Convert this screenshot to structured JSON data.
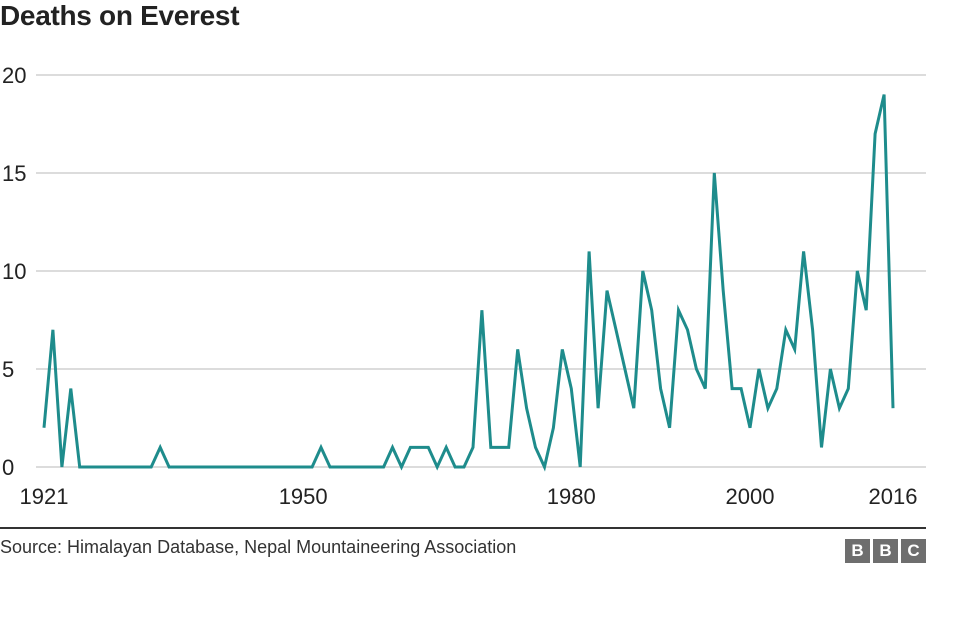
{
  "chart_data": {
    "type": "line",
    "title": "Deaths on Everest",
    "xlabel": "",
    "ylabel": "",
    "xlim": [
      1921,
      2016
    ],
    "ylim": [
      0,
      20
    ],
    "yticks": [
      0,
      5,
      10,
      15,
      20
    ],
    "xticks": [
      1921,
      1950,
      1980,
      2000,
      2016
    ],
    "grid": true,
    "series": [
      {
        "color": "#1e8c8c",
        "x": [
          1921,
          1922,
          1923,
          1924,
          1925,
          1926,
          1927,
          1928,
          1929,
          1930,
          1931,
          1932,
          1933,
          1934,
          1935,
          1936,
          1937,
          1938,
          1939,
          1940,
          1941,
          1942,
          1943,
          1944,
          1945,
          1946,
          1947,
          1948,
          1949,
          1950,
          1951,
          1952,
          1953,
          1954,
          1955,
          1956,
          1957,
          1958,
          1959,
          1960,
          1961,
          1962,
          1963,
          1964,
          1965,
          1966,
          1967,
          1968,
          1969,
          1970,
          1971,
          1972,
          1973,
          1974,
          1975,
          1976,
          1977,
          1978,
          1979,
          1980,
          1981,
          1982,
          1983,
          1984,
          1985,
          1986,
          1987,
          1988,
          1989,
          1990,
          1991,
          1992,
          1993,
          1994,
          1995,
          1996,
          1997,
          1998,
          1999,
          2000,
          2001,
          2002,
          2003,
          2004,
          2005,
          2006,
          2007,
          2008,
          2009,
          2010,
          2011,
          2012,
          2013,
          2014,
          2015,
          2016
        ],
        "y": [
          2,
          7,
          0,
          4,
          0,
          0,
          0,
          0,
          0,
          0,
          0,
          0,
          0,
          1,
          0,
          0,
          0,
          0,
          0,
          0,
          0,
          0,
          0,
          0,
          0,
          0,
          0,
          0,
          0,
          0,
          0,
          1,
          0,
          0,
          0,
          0,
          0,
          0,
          0,
          1,
          0,
          1,
          1,
          1,
          0,
          1,
          0,
          0,
          1,
          8,
          1,
          1,
          1,
          6,
          3,
          1,
          0,
          2,
          6,
          4,
          0,
          11,
          3,
          9,
          7,
          5,
          3,
          10,
          8,
          4,
          2,
          8,
          7,
          5,
          4,
          15,
          9,
          4,
          4,
          2,
          5,
          3,
          4,
          7,
          6,
          11,
          7,
          1,
          5,
          3,
          4,
          10,
          8,
          17,
          19,
          3
        ]
      }
    ]
  },
  "source": "Source: Himalayan Database, Nepal Mountaineering Association",
  "logo": [
    "B",
    "B",
    "C"
  ],
  "colors": {
    "line": "#1e8c8c",
    "logo_bg": "#6e6e6e"
  }
}
